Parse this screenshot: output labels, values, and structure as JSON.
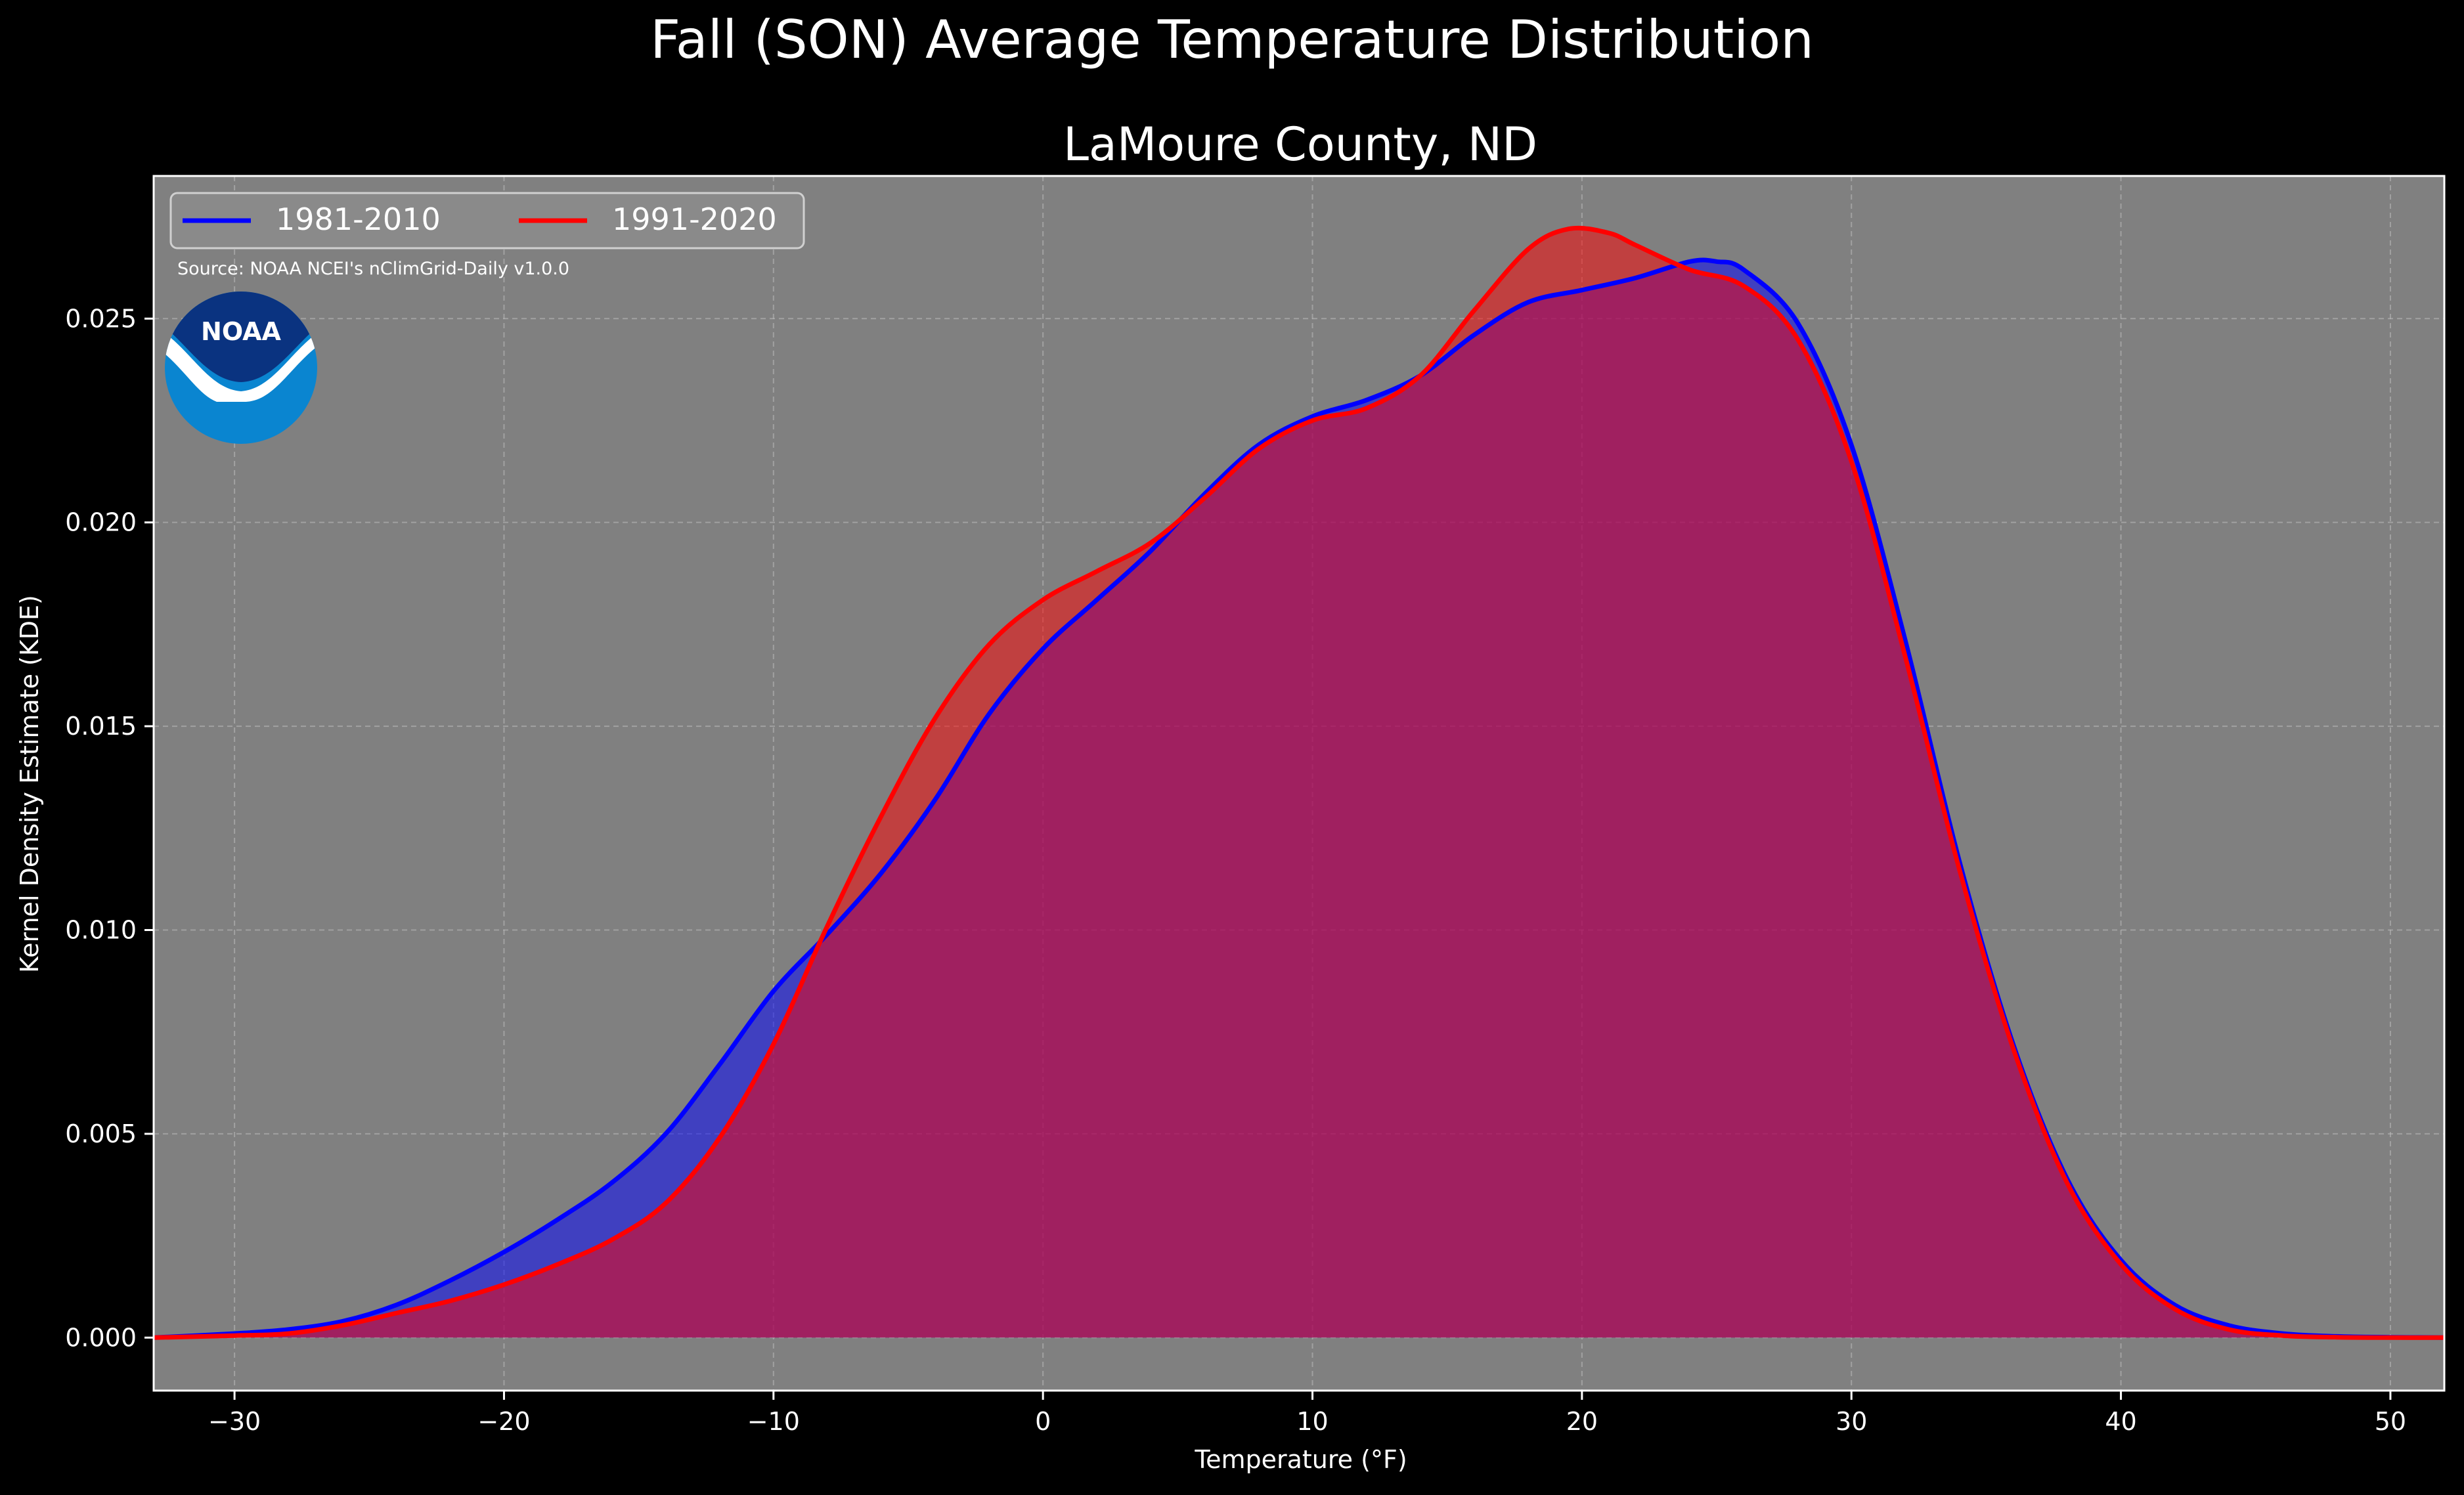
{
  "chart_data": {
    "type": "area",
    "title": "Fall (SON) Average Temperature Distribution",
    "subtitle": "LaMoure County, ND",
    "xlabel": "Temperature (°F)",
    "ylabel": "Kernel Density Estimate (KDE)",
    "xlim": [
      -33,
      52
    ],
    "ylim": [
      -0.0013,
      0.0285
    ],
    "xticks": [
      -30,
      -20,
      -10,
      0,
      10,
      20,
      30,
      40,
      50
    ],
    "xtick_labels": [
      "−30",
      "−20",
      "−10",
      "0",
      "10",
      "20",
      "30",
      "40",
      "50"
    ],
    "yticks": [
      0.0,
      0.005,
      0.01,
      0.015,
      0.02,
      0.025
    ],
    "ytick_labels": [
      "0.000",
      "0.005",
      "0.010",
      "0.015",
      "0.020",
      "0.025"
    ],
    "grid": true,
    "legend_position": "top-left",
    "source_note": "Source: NOAA NCEI's nClimGrid-Daily v1.0.0",
    "logo_text": "NOAA",
    "colors": {
      "background": "#000000",
      "plot_background": "#808080",
      "grid": "#bdbdbd",
      "series_1981": "#0000ff",
      "series_1991": "#ff0000",
      "logo_dark": "#0a3380",
      "logo_light": "#0a85d0"
    },
    "series": [
      {
        "name": "1981-2010",
        "color": "#0000ff",
        "x": [
          -33,
          -30,
          -28,
          -26,
          -24,
          -22,
          -20,
          -18,
          -16,
          -14,
          -12,
          -10,
          -8,
          -6,
          -4,
          -2,
          0,
          2,
          4,
          6,
          8,
          10,
          12,
          14,
          16,
          18,
          20,
          22,
          24,
          25,
          26,
          28,
          30,
          32,
          34,
          36,
          38,
          40,
          42,
          44,
          46,
          48,
          50,
          52
        ],
        "y": [
          0.0,
          0.0001,
          0.0002,
          0.0004,
          0.0008,
          0.0014,
          0.0021,
          0.0029,
          0.0038,
          0.005,
          0.0067,
          0.0085,
          0.0099,
          0.0114,
          0.0132,
          0.0153,
          0.0169,
          0.0181,
          0.0193,
          0.0207,
          0.0219,
          0.0226,
          0.023,
          0.0236,
          0.0246,
          0.0254,
          0.0257,
          0.026,
          0.0264,
          0.0264,
          0.0262,
          0.0249,
          0.0219,
          0.0171,
          0.0117,
          0.0072,
          0.0039,
          0.0019,
          0.0008,
          0.0003,
          0.0001,
          3e-05,
          1e-05,
          0.0
        ]
      },
      {
        "name": "1991-2020",
        "color": "#ff0000",
        "x": [
          -33,
          -30,
          -28,
          -26,
          -24,
          -22,
          -20,
          -18,
          -16,
          -14,
          -12,
          -10,
          -8,
          -6,
          -4,
          -2,
          0,
          2,
          4,
          6,
          8,
          10,
          12,
          14,
          16,
          18,
          19.5,
          21,
          22,
          24,
          26,
          28,
          30,
          32,
          34,
          36,
          38,
          40,
          42,
          44,
          46,
          48,
          50,
          52
        ],
        "y": [
          0.0,
          5e-05,
          0.0001,
          0.0003,
          0.0006,
          0.0009,
          0.0013,
          0.0018,
          0.0024,
          0.0033,
          0.0049,
          0.0072,
          0.0101,
          0.0128,
          0.0152,
          0.017,
          0.0181,
          0.0188,
          0.0195,
          0.0206,
          0.0218,
          0.0225,
          0.0228,
          0.0236,
          0.0252,
          0.0267,
          0.0272,
          0.0271,
          0.0268,
          0.0262,
          0.0258,
          0.0245,
          0.0215,
          0.0167,
          0.0115,
          0.0071,
          0.0038,
          0.0018,
          0.0007,
          0.0002,
          5e-05,
          1e-05,
          0.0,
          0.0
        ]
      }
    ]
  }
}
